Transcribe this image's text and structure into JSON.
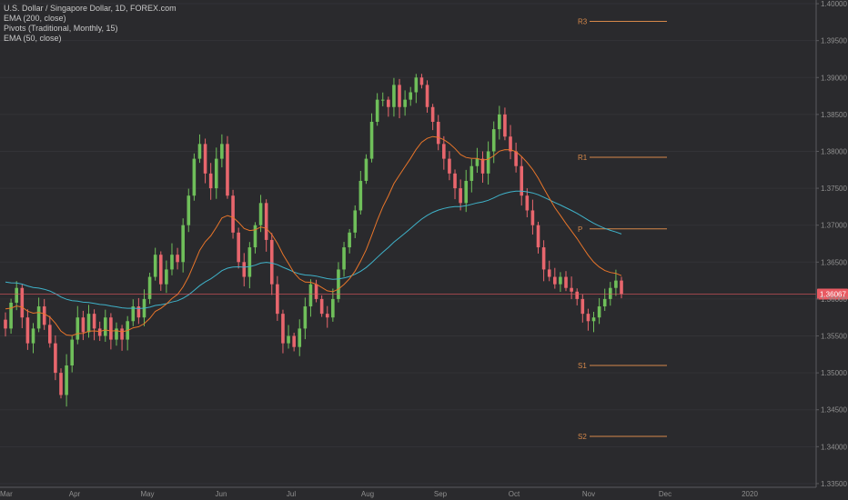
{
  "legend": {
    "symbol": "U.S. Dollar / Singapore Dollar, 1D, FOREX.com",
    "ema200": "EMA (200, close)",
    "pivots": "Pivots (Traditional, Monthly, 15)",
    "ema50": "EMA (50, close)"
  },
  "colors": {
    "background": "#2a2a2d",
    "up": "#6fbf5a",
    "down": "#e8666d",
    "ema50": "#e8752a",
    "ema200": "#3fb2c9",
    "pivot": "#d6884a",
    "last_price": "#e85a62",
    "axis_text": "#8f8f8f"
  },
  "chart_data": {
    "type": "candlestick",
    "symbol": "USDSGD",
    "timeframe": "1D",
    "ylim": [
      1.3345,
      1.4005
    ],
    "y_ticks": [
      "1.33500",
      "1.34000",
      "1.34500",
      "1.35000",
      "1.35500",
      "1.36000",
      "1.36500",
      "1.37000",
      "1.37500",
      "1.38000",
      "1.38500",
      "1.39000",
      "1.39500",
      "1.40000"
    ],
    "x_ticks": [
      "Mar",
      "Apr",
      "May",
      "Jun",
      "Jul",
      "Aug",
      "Sep",
      "Oct",
      "Nov",
      "Dec",
      "2020"
    ],
    "last_price": 1.36067,
    "last_price_label": "1.36067",
    "closes": [
      1.356,
      1.3595,
      1.3615,
      1.3575,
      1.354,
      1.356,
      1.359,
      1.3565,
      1.354,
      1.35,
      1.347,
      1.351,
      1.3545,
      1.3575,
      1.3555,
      1.358,
      1.356,
      1.355,
      1.3575,
      1.3545,
      1.356,
      1.3545,
      1.357,
      1.359,
      1.3575,
      1.36,
      1.363,
      1.366,
      1.362,
      1.364,
      1.366,
      1.365,
      1.37,
      1.374,
      1.379,
      1.381,
      1.377,
      1.375,
      1.379,
      1.381,
      1.374,
      1.369,
      1.365,
      1.363,
      1.367,
      1.37,
      1.373,
      1.368,
      1.362,
      1.358,
      1.354,
      1.355,
      1.3535,
      1.356,
      1.359,
      1.362,
      1.36,
      1.358,
      1.3575,
      1.36,
      1.364,
      1.367,
      1.369,
      1.372,
      1.376,
      1.379,
      1.384,
      1.387,
      1.387,
      1.386,
      1.389,
      1.386,
      1.387,
      1.388,
      1.39,
      1.389,
      1.386,
      1.384,
      1.381,
      1.379,
      1.377,
      1.375,
      1.373,
      1.376,
      1.378,
      1.379,
      1.377,
      1.38,
      1.383,
      1.385,
      1.382,
      1.38,
      1.378,
      1.374,
      1.372,
      1.37,
      1.367,
      1.364,
      1.363,
      1.362,
      1.363,
      1.3615,
      1.361,
      1.36,
      1.358,
      1.357,
      1.3575,
      1.359,
      1.36,
      1.3615,
      1.3625,
      1.3607
    ],
    "ema50": "orange line, ends near 1.3672",
    "ema200": "teal line, ends near 1.3688",
    "pivots": [
      {
        "label": "R3",
        "value": 1.3976
      },
      {
        "label": "R1",
        "value": 1.3792
      },
      {
        "label": "P",
        "value": 1.3695
      },
      {
        "label": "S1",
        "value": 1.351
      },
      {
        "label": "S2",
        "value": 1.3414
      }
    ]
  }
}
